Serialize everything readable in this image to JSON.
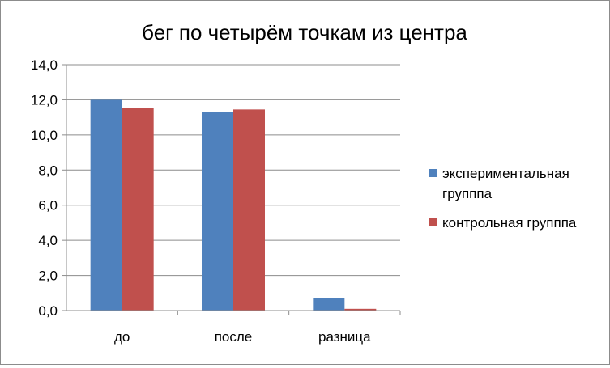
{
  "chart_data": {
    "type": "bar",
    "title": "бег по четырём точкам из центра",
    "categories": [
      "до",
      "после",
      "разница"
    ],
    "series": [
      {
        "name": "экспериментальная групппа",
        "values": [
          12.0,
          11.3,
          0.7
        ],
        "color": "#4f81bd"
      },
      {
        "name": "контрольная групппа",
        "values": [
          11.55,
          11.45,
          0.1
        ],
        "color": "#c0504d"
      }
    ],
    "legend_lines": [
      [
        "экспериментальная",
        "групппа"
      ],
      [
        "контрольная групппа"
      ]
    ],
    "ylim": [
      0,
      14
    ],
    "yticks": [
      "0,0",
      "2,0",
      "4,0",
      "6,0",
      "8,0",
      "10,0",
      "12,0",
      "14,0"
    ],
    "grid": true,
    "legend_position": "right"
  }
}
